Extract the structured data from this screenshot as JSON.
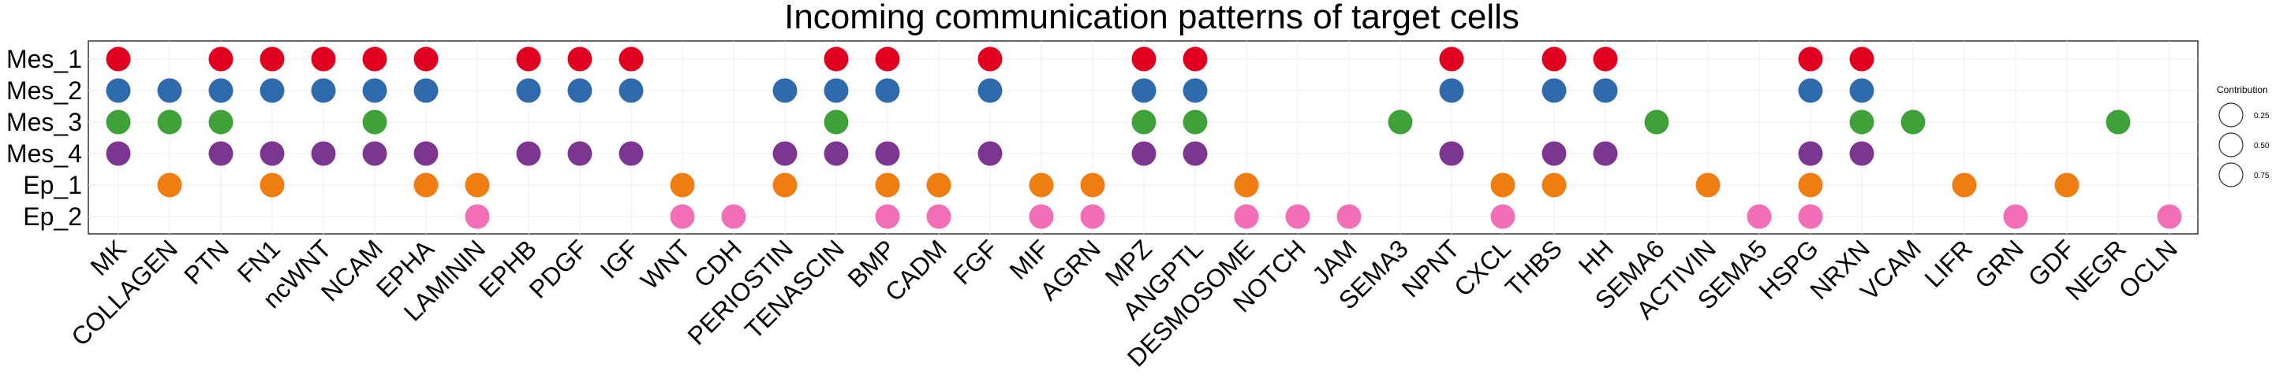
{
  "chart_data": {
    "type": "dot",
    "title": "Incoming communication patterns of target cells",
    "xlabel": "",
    "ylabel": "",
    "rows": [
      "Mes_1",
      "Mes_2",
      "Mes_3",
      "Mes_4",
      "Ep_1",
      "Ep_2"
    ],
    "columns": [
      "MK",
      "COLLAGEN",
      "PTN",
      "FN1",
      "ncWNT",
      "NCAM",
      "EPHA",
      "LAMININ",
      "EPHB",
      "PDGF",
      "IGF",
      "WNT",
      "CDH",
      "PERIOSTIN",
      "TENASCIN",
      "BMP",
      "CADM",
      "FGF",
      "MIF",
      "AGRN",
      "MPZ",
      "ANGPTL",
      "DESMOSOME",
      "NOTCH",
      "JAM",
      "SEMA3",
      "NPNT",
      "CXCL",
      "THBS",
      "HH",
      "SEMA6",
      "ACTIVIN",
      "SEMA5",
      "HSPG",
      "NRXN",
      "VCAM",
      "LIFR",
      "GRN",
      "GDF",
      "NEGR",
      "OCLN"
    ],
    "row_colors": {
      "Mes_1": "#e0001f",
      "Mes_2": "#2f6aad",
      "Mes_3": "#3ea13a",
      "Mes_4": "#7d3690",
      "Ep_1": "#ef7d12",
      "Ep_2": "#f26eb6"
    },
    "cells": [
      {
        "row": "Mes_1",
        "cols": [
          "MK",
          "PTN",
          "FN1",
          "ncWNT",
          "NCAM",
          "EPHA",
          "EPHB",
          "PDGF",
          "IGF",
          "TENASCIN",
          "BMP",
          "FGF",
          "MPZ",
          "ANGPTL",
          "NPNT",
          "THBS",
          "HH",
          "HSPG",
          "NRXN"
        ]
      },
      {
        "row": "Mes_2",
        "cols": [
          "MK",
          "COLLAGEN",
          "PTN",
          "FN1",
          "ncWNT",
          "NCAM",
          "EPHA",
          "EPHB",
          "PDGF",
          "IGF",
          "PERIOSTIN",
          "TENASCIN",
          "BMP",
          "FGF",
          "MPZ",
          "ANGPTL",
          "NPNT",
          "THBS",
          "HH",
          "HSPG",
          "NRXN"
        ]
      },
      {
        "row": "Mes_3",
        "cols": [
          "MK",
          "COLLAGEN",
          "PTN",
          "NCAM",
          "TENASCIN",
          "MPZ",
          "ANGPTL",
          "SEMA3",
          "SEMA6",
          "NRXN",
          "VCAM",
          "NEGR"
        ]
      },
      {
        "row": "Mes_4",
        "cols": [
          "MK",
          "PTN",
          "FN1",
          "ncWNT",
          "NCAM",
          "EPHA",
          "EPHB",
          "PDGF",
          "IGF",
          "PERIOSTIN",
          "TENASCIN",
          "BMP",
          "FGF",
          "MPZ",
          "ANGPTL",
          "NPNT",
          "THBS",
          "HH",
          "HSPG",
          "NRXN"
        ]
      },
      {
        "row": "Ep_1",
        "cols": [
          "COLLAGEN",
          "FN1",
          "EPHA",
          "LAMININ",
          "WNT",
          "PERIOSTIN",
          "BMP",
          "CADM",
          "MIF",
          "AGRN",
          "DESMOSOME",
          "CXCL",
          "THBS",
          "ACTIVIN",
          "HSPG",
          "LIFR",
          "GDF"
        ]
      },
      {
        "row": "Ep_2",
        "cols": [
          "LAMININ",
          "WNT",
          "CDH",
          "BMP",
          "CADM",
          "MIF",
          "AGRN",
          "DESMOSOME",
          "NOTCH",
          "JAM",
          "CXCL",
          "SEMA5",
          "HSPG",
          "GRN",
          "OCLN"
        ]
      }
    ],
    "legend": {
      "title": "Contribution",
      "values": [
        "0.25",
        "0.50",
        "0.75"
      ],
      "position": "right"
    },
    "grid": true
  }
}
